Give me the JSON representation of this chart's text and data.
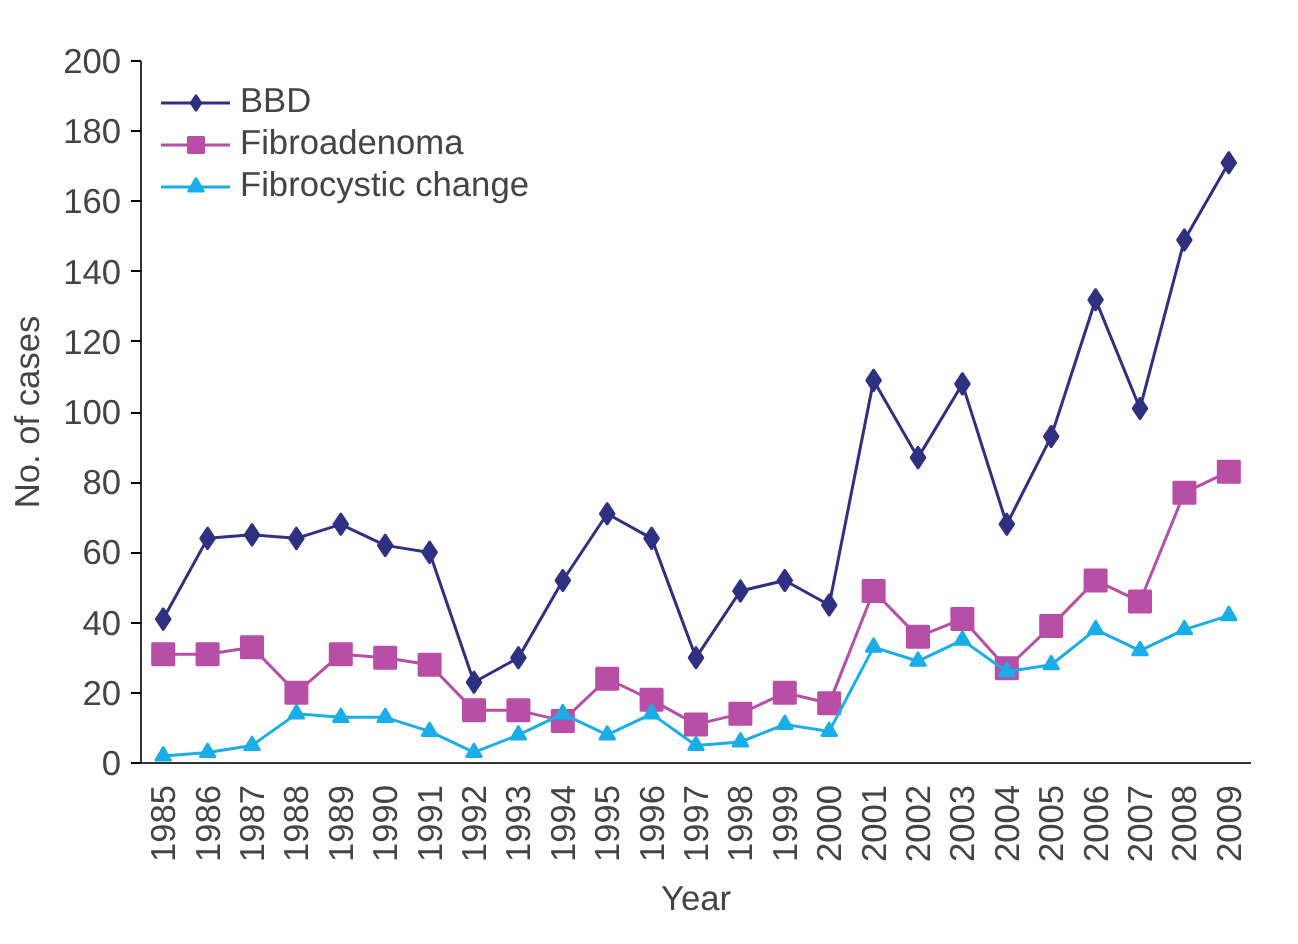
{
  "chart_data": {
    "type": "line",
    "xlabel": "Year",
    "ylabel": "No. of cases",
    "categories": [
      "1985",
      "1986",
      "1987",
      "1988",
      "1989",
      "1990",
      "1991",
      "1992",
      "1993",
      "1994",
      "1995",
      "1996",
      "1997",
      "1998",
      "1999",
      "2000",
      "2001",
      "2002",
      "2003",
      "2004",
      "2005",
      "2006",
      "2007",
      "2008",
      "2009"
    ],
    "series": [
      {
        "name": "BBD",
        "color": "#2e3182",
        "marker": "diamond",
        "values": [
          41,
          64,
          65,
          64,
          68,
          62,
          60,
          23,
          30,
          52,
          71,
          64,
          30,
          49,
          52,
          45,
          109,
          87,
          108,
          68,
          93,
          132,
          101,
          149,
          171
        ]
      },
      {
        "name": "Fibroadenoma",
        "color": "#b84fa6",
        "marker": "square",
        "values": [
          31,
          31,
          33,
          20,
          31,
          30,
          28,
          15,
          15,
          12,
          24,
          18,
          11,
          14,
          20,
          17,
          49,
          36,
          41,
          27,
          39,
          52,
          46,
          77,
          83
        ]
      },
      {
        "name": "Fibrocystic change",
        "color": "#1aaee8",
        "marker": "triangle",
        "values": [
          2,
          3,
          5,
          14,
          13,
          13,
          9,
          3,
          8,
          14,
          8,
          14,
          5,
          6,
          11,
          9,
          33,
          29,
          35,
          26,
          28,
          38,
          32,
          38,
          42
        ]
      }
    ],
    "ylim": [
      0,
      200
    ],
    "yticks": [
      0,
      20,
      40,
      60,
      80,
      100,
      120,
      140,
      160,
      180,
      200
    ],
    "grid": false,
    "legend": "top left"
  }
}
